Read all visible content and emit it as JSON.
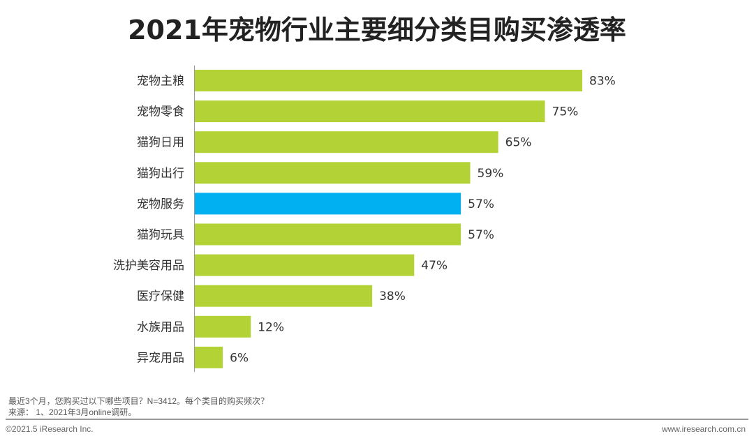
{
  "chart_data": {
    "type": "bar",
    "orientation": "horizontal",
    "title": "2021年宠物行业主要细分类目购买渗透率",
    "categories": [
      "宠物主粮",
      "宠物零食",
      "猫狗日用",
      "猫狗出行",
      "宠物服务",
      "猫狗玩具",
      "洗护美容用品",
      "医疗保健",
      "水族用品",
      "异宠用品"
    ],
    "values": [
      83,
      75,
      65,
      59,
      57,
      57,
      47,
      38,
      12,
      6
    ],
    "data_labels": [
      "83%",
      "75%",
      "65%",
      "59%",
      "57%",
      "57%",
      "47%",
      "38%",
      "12%",
      "6%"
    ],
    "highlight_index": 4,
    "colors": {
      "default": "#b2d235",
      "highlight": "#00b0f0"
    },
    "xlim": [
      0,
      100
    ],
    "grid": false
  },
  "notes": {
    "question": "最近3个月，您购买过以下哪些项目？N=3412。每个类目的购买频次？",
    "source": "来源： 1、2021年3月online调研。"
  },
  "footer": {
    "copyright": "©2021.5 iResearch Inc.",
    "website": "www.iresearch.com.cn"
  }
}
